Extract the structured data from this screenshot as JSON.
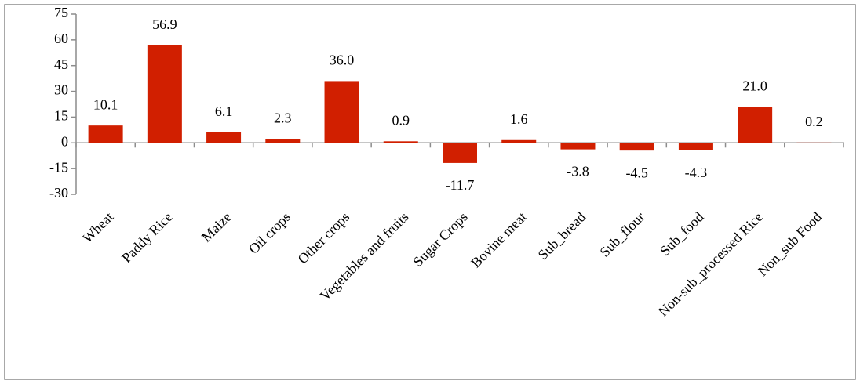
{
  "chart_data": {
    "type": "bar",
    "categories": [
      "Wheat",
      "Paddy Rice",
      "Maize",
      "Oil crops",
      "Other crops",
      "Vegetables and fruits",
      "Sugar Crops",
      "Bovine meat",
      "Sub_bread",
      "Sub_flour",
      "Sub_food",
      "Non-sub_processed Rice",
      "Non_sub Food"
    ],
    "values": [
      10.1,
      56.9,
      6.1,
      2.3,
      36.0,
      0.9,
      -11.7,
      1.6,
      -3.8,
      -4.5,
      -4.3,
      21.0,
      0.2
    ],
    "value_labels": [
      "10.1",
      "56.9",
      "6.1",
      "2.3",
      "36.0",
      "0.9",
      "-11.7",
      "1.6",
      "-3.8",
      "-4.5",
      "-4.3",
      "21.0",
      "0.2"
    ],
    "color": "#d11f00",
    "ylim": [
      -30,
      75
    ],
    "yticks": [
      -30,
      -15,
      0,
      15,
      30,
      45,
      60,
      75
    ],
    "grid": false
  }
}
